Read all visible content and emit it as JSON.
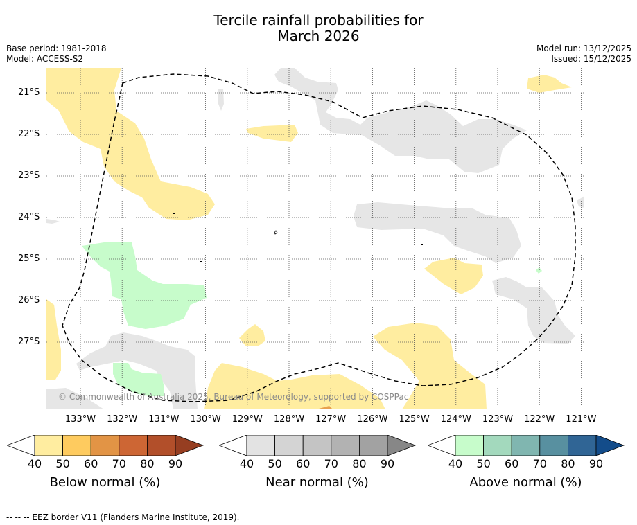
{
  "title_line1": "Tercile rainfall probabilities for",
  "title_line2": "March 2026",
  "base_period": "Base period: 1981-2018",
  "model": "Model: ACCESS-S2",
  "model_run": "Model run: 13/12/2025",
  "issued": "Issued: 15/12/2025",
  "copyright": "© Commonwealth of Australia 2025, Bureau of Meteorology, supported by COSPPac",
  "footnote": "--  --  -- EEZ border V11 (Flanders Marine Institute, 2019).",
  "latitude_labels": [
    "21°S",
    "22°S",
    "23°S",
    "24°S",
    "25°S",
    "26°S",
    "27°S"
  ],
  "longitude_labels": [
    "133°W",
    "132°W",
    "131°W",
    "130°W",
    "129°W",
    "128°W",
    "127°W",
    "126°W",
    "125°W",
    "124°W",
    "123°W",
    "122°W",
    "121°W"
  ],
  "colorbars": [
    {
      "title": "Below normal (%)",
      "ticks": [
        "40",
        "50",
        "60",
        "70",
        "80",
        "90"
      ],
      "colors": [
        "#ffeda0",
        "#fecb5f",
        "#e29445",
        "#cd6634",
        "#b24f2a",
        "#963e21"
      ]
    },
    {
      "title": "Near normal (%)",
      "ticks": [
        "40",
        "50",
        "60",
        "70",
        "80",
        "90"
      ],
      "colors": [
        "#e3e3e3",
        "#d4d4d4",
        "#c4c4c4",
        "#b2b2b2",
        "#a2a2a2",
        "#878787"
      ]
    },
    {
      "title": "Above normal (%)",
      "ticks": [
        "40",
        "50",
        "60",
        "70",
        "80",
        "90"
      ],
      "colors": [
        "#c7fccb",
        "#a3d9bd",
        "#80b6b0",
        "#5890a0",
        "#306595",
        "#134c8a"
      ]
    }
  ],
  "colors": {
    "below_normal": "#ffeda0",
    "near_normal": "#e6e6e6",
    "above_normal": "#c7fccb",
    "grid": "#555555",
    "eez_border": "#000000"
  }
}
